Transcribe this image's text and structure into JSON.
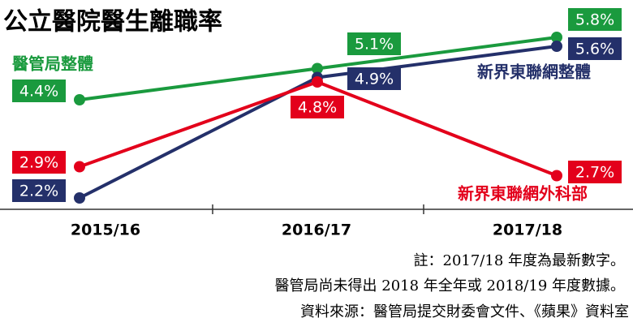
{
  "chart_data": {
    "type": "line",
    "title": "公立醫院醫生離職率",
    "categories": [
      "2015/16",
      "2016/17",
      "2017/18"
    ],
    "series": [
      {
        "name": "醫管局整體",
        "color": "#1a9a3e",
        "values": [
          4.4,
          5.1,
          5.8
        ],
        "value_labels": [
          "4.4%",
          "5.1%",
          "5.8%"
        ]
      },
      {
        "name": "新界東聯網整體",
        "color": "#24306a",
        "values": [
          2.2,
          4.9,
          5.6
        ],
        "value_labels": [
          "2.2%",
          "4.9%",
          "5.6%"
        ]
      },
      {
        "name": "新界東聯網外科部",
        "color": "#e3001b",
        "values": [
          2.9,
          4.8,
          2.7
        ],
        "value_labels": [
          "2.9%",
          "4.8%",
          "2.7%"
        ]
      }
    ],
    "ylim": [
      2,
      6
    ],
    "notes": [
      "註：2017/18 年度為最新數字。",
      "醫管局尚未得出 2018 年全年或 2018/19 年度數據。",
      "資料來源：醫管局提交財委會文件、《蘋果》資料室"
    ]
  }
}
